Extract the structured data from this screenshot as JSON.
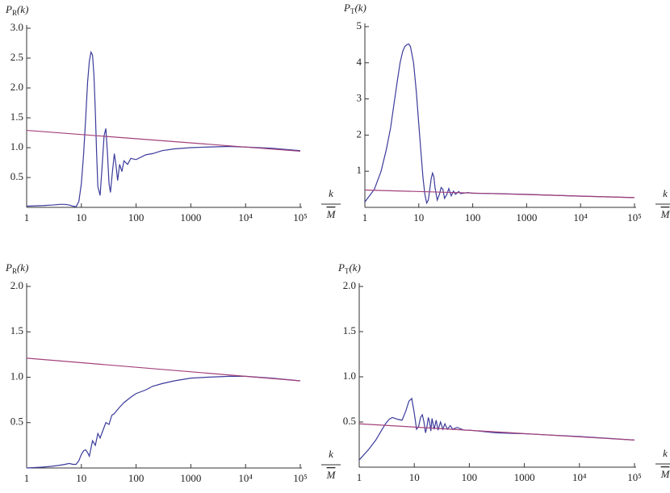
{
  "chart_data": [
    {
      "type": "line",
      "ylabel": {
        "symbol": "P",
        "subscript": "R",
        "arg": "(k)"
      },
      "xlabel": {
        "numerator": "k",
        "denominator": "M"
      },
      "xscale": "log",
      "xlim": [
        1,
        100000
      ],
      "xticks": [
        1,
        10,
        100,
        1000,
        {
          "value": 10000,
          "label": "10⁴"
        },
        {
          "value": 100000,
          "label": "10⁵"
        }
      ],
      "ylim": [
        0,
        3
      ],
      "yticks": [
        0.5,
        {
          "value": 1,
          "label": "1.0"
        },
        1.5,
        {
          "value": 2,
          "label": "2.0"
        },
        2.5,
        {
          "value": 3,
          "label": "3.0"
        }
      ],
      "series": [
        {
          "color": "#3b3b9c",
          "x": [
            1,
            2,
            3,
            4,
            5,
            6,
            7,
            8,
            9,
            10,
            11,
            12,
            13,
            14,
            15,
            16,
            17,
            18,
            19,
            20,
            22,
            24,
            26,
            28,
            30,
            32,
            34,
            37,
            40,
            43,
            46,
            50,
            55,
            60,
            70,
            80,
            100,
            150,
            200,
            300,
            500,
            1000,
            2000,
            5000,
            10000,
            30000,
            100000
          ],
          "values": [
            0.02,
            0.03,
            0.04,
            0.05,
            0.05,
            0.04,
            0.02,
            0.01,
            0.1,
            0.4,
            0.9,
            1.5,
            2.1,
            2.45,
            2.6,
            2.55,
            2.2,
            1.6,
            0.9,
            0.35,
            0.2,
            0.7,
            1.2,
            1.32,
            0.9,
            0.4,
            0.25,
            0.6,
            0.9,
            0.7,
            0.45,
            0.72,
            0.6,
            0.78,
            0.72,
            0.82,
            0.8,
            0.88,
            0.9,
            0.95,
            0.98,
            1.0,
            1.01,
            1.02,
            1.01,
            0.99,
            0.95
          ]
        },
        {
          "color": "#a3417b",
          "x": [
            1,
            100000
          ],
          "values": [
            1.29,
            0.94
          ]
        }
      ]
    },
    {
      "type": "line",
      "ylabel": {
        "symbol": "P",
        "subscript": "T",
        "arg": "(k)"
      },
      "xlabel": {
        "numerator": "k",
        "denominator": "M"
      },
      "xscale": "log",
      "xlim": [
        1,
        100000
      ],
      "xticks": [
        1,
        10,
        100,
        1000,
        {
          "value": 10000,
          "label": "10⁴"
        },
        {
          "value": 100000,
          "label": "10⁵"
        }
      ],
      "ylim": [
        0,
        5
      ],
      "yticks": [
        1,
        2,
        3,
        4,
        5
      ],
      "series": [
        {
          "color": "#3b3b9c",
          "x": [
            1,
            1.5,
            2,
            2.5,
            3,
            3.5,
            4,
            4.5,
            5,
            5.5,
            6,
            6.5,
            7,
            8,
            9,
            10,
            11,
            12,
            13,
            14,
            15,
            16,
            17,
            18,
            19,
            20,
            22,
            24,
            26,
            28,
            30,
            33,
            36,
            40,
            44,
            48,
            55,
            60,
            80,
            100,
            300,
            1000,
            10000,
            100000
          ],
          "values": [
            0.15,
            0.5,
            1.0,
            1.6,
            2.2,
            2.9,
            3.5,
            4.0,
            4.3,
            4.45,
            4.5,
            4.52,
            4.45,
            4.0,
            3.2,
            2.3,
            1.5,
            0.8,
            0.35,
            0.12,
            0.2,
            0.5,
            0.8,
            0.95,
            0.85,
            0.55,
            0.2,
            0.35,
            0.55,
            0.5,
            0.25,
            0.35,
            0.52,
            0.32,
            0.45,
            0.36,
            0.44,
            0.38,
            0.41,
            0.39,
            0.38,
            0.36,
            0.31,
            0.27
          ]
        },
        {
          "color": "#a3417b",
          "x": [
            1,
            100000
          ],
          "values": [
            0.48,
            0.27
          ]
        }
      ]
    },
    {
      "type": "line",
      "ylabel": {
        "symbol": "P",
        "subscript": "R",
        "arg": "(k)"
      },
      "xlabel": {
        "numerator": "k",
        "denominator": "M"
      },
      "xscale": "log",
      "xlim": [
        1,
        100000
      ],
      "xticks": [
        1,
        10,
        100,
        1000,
        {
          "value": 10000,
          "label": "10⁴"
        },
        {
          "value": 100000,
          "label": "10⁵"
        }
      ],
      "ylim": [
        0,
        2
      ],
      "yticks": [
        0.5,
        {
          "value": 1,
          "label": "1.0"
        },
        1.5,
        {
          "value": 2,
          "label": "2.0"
        }
      ],
      "series": [
        {
          "color": "#3b3b9c",
          "x": [
            1,
            2,
            3,
            4,
            5,
            6,
            7,
            8,
            9,
            10,
            11,
            12,
            13,
            14,
            15,
            16,
            18,
            20,
            22,
            25,
            28,
            32,
            36,
            40,
            50,
            60,
            80,
            100,
            150,
            200,
            300,
            500,
            1000,
            2000,
            5000,
            10000,
            30000,
            100000
          ],
          "values": [
            0.0,
            0.01,
            0.02,
            0.03,
            0.04,
            0.05,
            0.04,
            0.04,
            0.08,
            0.15,
            0.19,
            0.2,
            0.17,
            0.13,
            0.22,
            0.3,
            0.25,
            0.38,
            0.33,
            0.42,
            0.5,
            0.48,
            0.58,
            0.6,
            0.67,
            0.72,
            0.78,
            0.82,
            0.86,
            0.9,
            0.93,
            0.96,
            0.99,
            1.0,
            1.01,
            1.01,
            0.99,
            0.96
          ]
        },
        {
          "color": "#a3417b",
          "x": [
            1,
            100000
          ],
          "values": [
            1.21,
            0.96
          ]
        }
      ]
    },
    {
      "type": "line",
      "ylabel": {
        "symbol": "P",
        "subscript": "T",
        "arg": "(k)"
      },
      "xlabel": {
        "numerator": "k",
        "denominator": "M"
      },
      "xscale": "log",
      "xlim": [
        1,
        100000
      ],
      "xticks": [
        1,
        10,
        100,
        1000,
        {
          "value": 10000,
          "label": "10⁴"
        },
        {
          "value": 100000,
          "label": "10⁵"
        }
      ],
      "ylim": [
        0,
        2
      ],
      "yticks": [
        0.5,
        {
          "value": 1,
          "label": "1.0"
        },
        1.5,
        {
          "value": 2,
          "label": "2.0"
        }
      ],
      "series": [
        {
          "color": "#3b3b9c",
          "x": [
            1,
            1.5,
            2,
            2.5,
            3,
            3.5,
            4,
            5,
            6,
            7,
            8,
            9,
            10,
            11,
            12,
            13,
            14,
            15,
            16,
            17,
            18,
            19,
            20,
            21,
            23,
            25,
            27,
            30,
            33,
            36,
            40,
            45,
            50,
            60,
            80,
            100,
            300,
            1000,
            10000,
            100000
          ],
          "values": [
            0.08,
            0.2,
            0.3,
            0.4,
            0.48,
            0.53,
            0.55,
            0.53,
            0.52,
            0.62,
            0.73,
            0.76,
            0.6,
            0.42,
            0.45,
            0.55,
            0.58,
            0.5,
            0.38,
            0.45,
            0.55,
            0.5,
            0.4,
            0.54,
            0.42,
            0.52,
            0.41,
            0.5,
            0.42,
            0.48,
            0.42,
            0.46,
            0.42,
            0.44,
            0.41,
            0.41,
            0.38,
            0.37,
            0.34,
            0.3
          ]
        },
        {
          "color": "#a3417b",
          "x": [
            1,
            100000
          ],
          "values": [
            0.48,
            0.3
          ]
        }
      ]
    }
  ]
}
